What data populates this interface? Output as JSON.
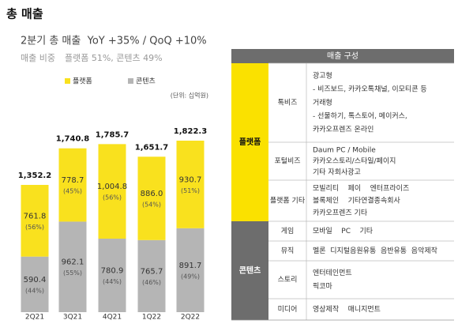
{
  "header": {
    "title": "총 매출",
    "subtitle": "2분기 총 매출  YoY +35% / QoQ +10%",
    "share_label": "매출 비중",
    "share_text": "플랫폼 51%, 콘텐츠 49%"
  },
  "chart_data": {
    "type": "bar",
    "stacked": true,
    "unit": "(단위: 십억원)",
    "categories": [
      "2Q21",
      "3Q21",
      "4Q21",
      "1Q22",
      "2Q22"
    ],
    "series": [
      {
        "name": "플랫폼",
        "color": "#f9e11e",
        "values": [
          761.8,
          778.7,
          1004.8,
          886.0,
          930.7
        ],
        "value_labels": [
          "761.8",
          "778.7",
          "1,004.8",
          "886.0",
          "930.7"
        ],
        "percent_labels": [
          "(56%)",
          "(45%)",
          "(56%)",
          "(54%)",
          "(51%)"
        ]
      },
      {
        "name": "콘텐츠",
        "color": "#b5b5b5",
        "values": [
          590.4,
          962.1,
          780.9,
          765.7,
          891.7
        ],
        "percent_labels": [
          "(44%)",
          "(55%)",
          "(44%)",
          "(46%)",
          "(49%)"
        ]
      }
    ],
    "totals": [
      1352.2,
      1740.8,
      1785.7,
      1651.7,
      1822.3
    ],
    "total_labels": [
      "1,352.2",
      "1,740.8",
      "1,785.7",
      "1,651.7",
      "1,822.3"
    ]
  },
  "table": {
    "title": "매출 구성",
    "groups": [
      {
        "name": "플랫폼",
        "rows": [
          {
            "label": "톡비즈",
            "items": [
              "광고형",
              "- 비즈보드, 카카오톡채널, 이모티콘 등",
              "거래형",
              "- 선물하기, 톡스토어, 메이커스,",
              "카카오프렌즈 온라인"
            ]
          },
          {
            "label": "포털비즈",
            "items": [
              "Daum PC / Mobile",
              "카카오스토리/스타일/페이지",
              "기타 자회사광고"
            ]
          },
          {
            "label": "플랫폼 기타",
            "items": [
              "모빌리티    페이    엔터프라이즈",
              "블록체인    기타연결종속회사",
              "카카오프렌즈 기타"
            ]
          }
        ]
      },
      {
        "name": "콘텐츠",
        "rows": [
          {
            "label": "게임",
            "items": [
              "모바일    PC    기타"
            ]
          },
          {
            "label": "뮤직",
            "items": [
              "멜론  디지털음원유통  음반유통  음악제작"
            ]
          },
          {
            "label": "스토리",
            "items": [
              "엔터테인먼트",
              "픽코마"
            ]
          },
          {
            "label": "미디어",
            "items": [
              "영상제작    매니지먼트"
            ]
          }
        ]
      }
    ]
  }
}
